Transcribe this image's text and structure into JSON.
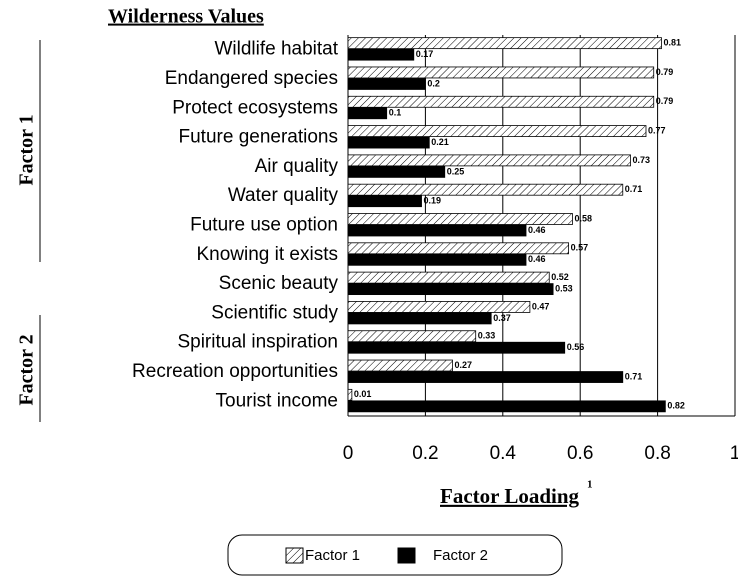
{
  "chart_data": {
    "type": "hbar",
    "category_header": "Wilderness Values",
    "x_label": "Factor Loading",
    "x_label_footnote": "1",
    "categories": [
      "Wildlife habitat",
      "Endangered species",
      "Protect ecosystems",
      "Future generations",
      "Air quality",
      "Water quality",
      "Future use option",
      "Knowing it exists",
      "Scenic beauty",
      "Scientific study",
      "Spiritual inspiration",
      "Recreation opportunities",
      "Tourist income"
    ],
    "series": [
      {
        "name": "Factor 1",
        "color": "#ffffff",
        "hatch": true,
        "values": [
          0.81,
          0.79,
          0.79,
          0.77,
          0.73,
          0.71,
          0.58,
          0.57,
          0.52,
          0.47,
          0.33,
          0.27,
          0.01
        ]
      },
      {
        "name": "Factor 2",
        "color": "#000000",
        "hatch": false,
        "values": [
          0.17,
          0.2,
          0.1,
          0.21,
          0.25,
          0.19,
          0.46,
          0.46,
          0.53,
          0.37,
          0.56,
          0.71,
          0.82
        ]
      }
    ],
    "groups": [
      {
        "label": "Factor 1"
      },
      {
        "label": "Factor 2"
      }
    ],
    "xlim": [
      0,
      1
    ],
    "xticks": [
      0,
      0.2,
      0.4,
      0.6,
      0.8,
      1
    ],
    "grid": true
  }
}
